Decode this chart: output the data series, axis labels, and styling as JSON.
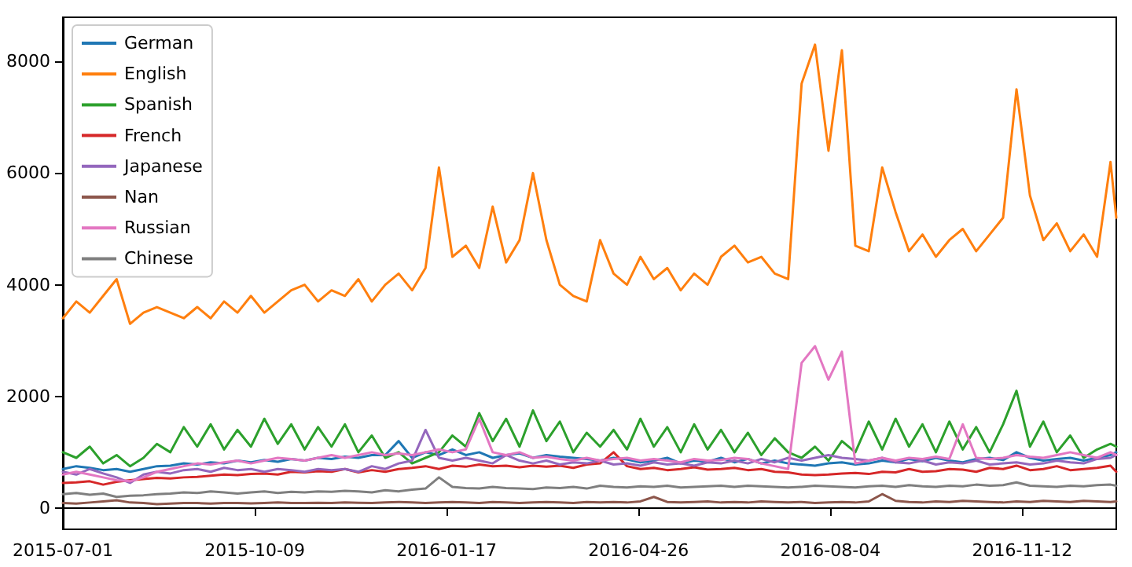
{
  "chart_data": {
    "type": "line",
    "x": [
      "2015-07-01",
      "2015-07-08",
      "2015-07-15",
      "2015-07-22",
      "2015-07-29",
      "2015-08-05",
      "2015-08-12",
      "2015-08-19",
      "2015-08-26",
      "2015-09-02",
      "2015-09-09",
      "2015-09-16",
      "2015-09-23",
      "2015-09-30",
      "2015-10-07",
      "2015-10-14",
      "2015-10-21",
      "2015-10-28",
      "2015-11-04",
      "2015-11-11",
      "2015-11-18",
      "2015-11-25",
      "2015-12-02",
      "2015-12-09",
      "2015-12-16",
      "2015-12-23",
      "2015-12-30",
      "2016-01-06",
      "2016-01-13",
      "2016-01-20",
      "2016-01-27",
      "2016-02-03",
      "2016-02-10",
      "2016-02-17",
      "2016-02-24",
      "2016-03-02",
      "2016-03-09",
      "2016-03-16",
      "2016-03-23",
      "2016-03-30",
      "2016-04-06",
      "2016-04-13",
      "2016-04-20",
      "2016-04-27",
      "2016-05-04",
      "2016-05-11",
      "2016-05-18",
      "2016-05-25",
      "2016-06-01",
      "2016-06-08",
      "2016-06-15",
      "2016-06-22",
      "2016-06-29",
      "2016-07-06",
      "2016-07-13",
      "2016-07-20",
      "2016-07-27",
      "2016-08-03",
      "2016-08-10",
      "2016-08-17",
      "2016-08-24",
      "2016-08-31",
      "2016-09-07",
      "2016-09-14",
      "2016-09-21",
      "2016-09-28",
      "2016-10-05",
      "2016-10-12",
      "2016-10-19",
      "2016-10-26",
      "2016-11-02",
      "2016-11-09",
      "2016-11-16",
      "2016-11-23",
      "2016-11-30",
      "2016-12-07",
      "2016-12-14",
      "2016-12-21",
      "2016-12-28",
      "2016-12-31"
    ],
    "series": [
      {
        "name": "German",
        "color": "#1f77b4",
        "values": [
          700,
          750,
          720,
          680,
          700,
          650,
          700,
          750,
          760,
          800,
          780,
          820,
          800,
          850,
          820,
          860,
          830,
          880,
          850,
          900,
          880,
          920,
          900,
          950,
          950,
          1200,
          900,
          1000,
          950,
          1050,
          950,
          1000,
          900,
          950,
          980,
          900,
          950,
          920,
          900,
          880,
          850,
          900,
          870,
          820,
          850,
          900,
          800,
          850,
          830,
          900,
          820,
          880,
          800,
          850,
          800,
          780,
          760,
          800,
          820,
          780,
          800,
          850,
          820,
          880,
          840,
          900,
          850,
          820,
          880,
          900,
          860,
          1000,
          900,
          850,
          880,
          900,
          850,
          900,
          950,
          1000
        ]
      },
      {
        "name": "English",
        "color": "#ff7f0e",
        "values": [
          3400,
          3700,
          3500,
          3800,
          4100,
          3300,
          3500,
          3600,
          3500,
          3400,
          3600,
          3400,
          3700,
          3500,
          3800,
          3500,
          3700,
          3900,
          4000,
          3700,
          3900,
          3800,
          4100,
          3700,
          4000,
          4200,
          3900,
          4300,
          6100,
          4500,
          4700,
          4300,
          5400,
          4400,
          4800,
          6000,
          4800,
          4000,
          3800,
          3700,
          4800,
          4200,
          4000,
          4500,
          4100,
          4300,
          3900,
          4200,
          4000,
          4500,
          4700,
          4400,
          4500,
          4200,
          4100,
          7600,
          8300,
          6400,
          8200,
          4700,
          4600,
          6100,
          5300,
          4600,
          4900,
          4500,
          4800,
          5000,
          4600,
          4900,
          5200,
          7500,
          5600,
          4800,
          5100,
          4600,
          4900,
          4500,
          6200,
          5200
        ]
      },
      {
        "name": "Spanish",
        "color": "#2ca02c",
        "values": [
          1000,
          900,
          1100,
          800,
          950,
          750,
          900,
          1150,
          1000,
          1450,
          1100,
          1500,
          1050,
          1400,
          1100,
          1600,
          1150,
          1500,
          1050,
          1450,
          1100,
          1500,
          1000,
          1300,
          900,
          1000,
          800,
          900,
          1000,
          1300,
          1100,
          1700,
          1200,
          1600,
          1100,
          1750,
          1200,
          1550,
          1000,
          1350,
          1100,
          1400,
          1050,
          1600,
          1100,
          1450,
          1000,
          1500,
          1050,
          1400,
          1000,
          1350,
          950,
          1250,
          1000,
          900,
          1100,
          850,
          1200,
          1000,
          1550,
          1050,
          1600,
          1100,
          1500,
          1000,
          1550,
          1050,
          1450,
          1000,
          1500,
          2100,
          1100,
          1550,
          1000,
          1300,
          900,
          1050,
          1150,
          1100
        ]
      },
      {
        "name": "French",
        "color": "#d62728",
        "values": [
          450,
          460,
          480,
          420,
          470,
          500,
          520,
          540,
          530,
          550,
          560,
          580,
          600,
          590,
          610,
          620,
          600,
          650,
          640,
          660,
          650,
          700,
          640,
          680,
          650,
          700,
          720,
          750,
          700,
          760,
          740,
          780,
          750,
          760,
          730,
          760,
          740,
          760,
          720,
          780,
          800,
          1000,
          750,
          700,
          720,
          680,
          700,
          730,
          690,
          700,
          720,
          680,
          700,
          650,
          640,
          600,
          590,
          600,
          620,
          630,
          610,
          650,
          640,
          700,
          650,
          660,
          700,
          690,
          650,
          720,
          700,
          760,
          680,
          700,
          750,
          680,
          700,
          720,
          760,
          650
        ]
      },
      {
        "name": "Japanese",
        "color": "#9467bd",
        "values": [
          650,
          600,
          700,
          620,
          550,
          450,
          600,
          650,
          620,
          680,
          700,
          650,
          720,
          680,
          700,
          650,
          700,
          680,
          650,
          700,
          680,
          700,
          650,
          750,
          700,
          800,
          850,
          1400,
          900,
          850,
          900,
          850,
          800,
          950,
          850,
          800,
          850,
          780,
          820,
          800,
          850,
          780,
          800,
          760,
          820,
          780,
          800,
          760,
          820,
          800,
          850,
          800,
          880,
          820,
          900,
          850,
          900,
          950,
          900,
          880,
          850,
          900,
          820,
          800,
          850,
          780,
          820,
          800,
          850,
          780,
          800,
          820,
          780,
          800,
          850,
          820,
          800,
          880,
          900,
          950
        ]
      },
      {
        "name": "Nan",
        "color": "#8c564b",
        "values": [
          90,
          80,
          100,
          120,
          140,
          100,
          90,
          70,
          80,
          90,
          90,
          80,
          90,
          90,
          85,
          90,
          100,
          90,
          90,
          95,
          90,
          100,
          95,
          90,
          100,
          110,
          100,
          90,
          100,
          110,
          100,
          90,
          110,
          100,
          90,
          100,
          110,
          100,
          90,
          110,
          100,
          110,
          100,
          120,
          200,
          110,
          100,
          110,
          120,
          100,
          110,
          100,
          120,
          110,
          100,
          110,
          90,
          100,
          110,
          100,
          120,
          250,
          130,
          110,
          100,
          120,
          110,
          130,
          120,
          110,
          100,
          120,
          110,
          130,
          120,
          110,
          130,
          120,
          110,
          120
        ]
      },
      {
        "name": "Russian",
        "color": "#e377c2",
        "values": [
          600,
          650,
          600,
          550,
          500,
          480,
          550,
          650,
          700,
          750,
          800,
          780,
          820,
          850,
          800,
          850,
          900,
          880,
          850,
          900,
          950,
          900,
          950,
          1000,
          950,
          980,
          950,
          1000,
          1050,
          1000,
          1050,
          1600,
          1000,
          950,
          1000,
          900,
          920,
          880,
          850,
          900,
          850,
          880,
          900,
          850,
          880,
          850,
          820,
          880,
          850,
          860,
          900,
          880,
          800,
          750,
          700,
          2600,
          2900,
          2300,
          2800,
          800,
          850,
          900,
          850,
          900,
          880,
          920,
          880,
          1500,
          900,
          880,
          900,
          950,
          920,
          900,
          950,
          1000,
          950,
          900,
          1000,
          950
        ]
      },
      {
        "name": "Chinese",
        "color": "#7f7f7f",
        "values": [
          250,
          270,
          240,
          260,
          200,
          220,
          230,
          250,
          260,
          280,
          270,
          300,
          280,
          260,
          280,
          300,
          270,
          290,
          280,
          300,
          290,
          310,
          300,
          280,
          320,
          300,
          330,
          350,
          550,
          380,
          360,
          350,
          380,
          360,
          350,
          340,
          370,
          360,
          380,
          350,
          400,
          380,
          370,
          390,
          380,
          400,
          370,
          380,
          390,
          400,
          380,
          400,
          390,
          380,
          370,
          380,
          400,
          390,
          380,
          370,
          390,
          400,
          380,
          410,
          390,
          380,
          400,
          390,
          420,
          400,
          410,
          460,
          400,
          390,
          380,
          400,
          390,
          410,
          420,
          400
        ]
      }
    ],
    "xlim": [
      "2015-07-01",
      "2016-12-31"
    ],
    "xticks": [
      "2015-07-01",
      "2015-10-09",
      "2016-01-17",
      "2016-04-26",
      "2016-08-04",
      "2016-11-12"
    ],
    "ylim": [
      -380,
      8790
    ],
    "yticks": [
      0,
      2000,
      4000,
      6000,
      8000
    ],
    "legend": "top left",
    "marker": "none"
  }
}
